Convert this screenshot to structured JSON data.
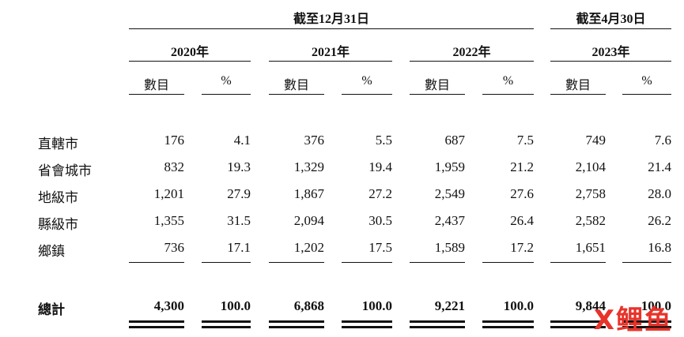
{
  "headers": {
    "group1": "截至12月31日",
    "group2": "截至4月30日",
    "years": [
      "2020年",
      "2021年",
      "2022年",
      "2023年"
    ],
    "count_label": "數目",
    "pct_label": "%"
  },
  "rows": [
    {
      "label": "直轄市",
      "values": [
        "176",
        "4.1",
        "376",
        "5.5",
        "687",
        "7.5",
        "749",
        "7.6"
      ]
    },
    {
      "label": "省會城市",
      "values": [
        "832",
        "19.3",
        "1,329",
        "19.4",
        "1,959",
        "21.2",
        "2,104",
        "21.4"
      ]
    },
    {
      "label": "地級市",
      "values": [
        "1,201",
        "27.9",
        "1,867",
        "27.2",
        "2,549",
        "27.6",
        "2,758",
        "28.0"
      ]
    },
    {
      "label": "縣級市",
      "values": [
        "1,355",
        "31.5",
        "2,094",
        "30.5",
        "2,437",
        "26.4",
        "2,582",
        "26.2"
      ]
    },
    {
      "label": "鄉鎮",
      "values": [
        "736",
        "17.1",
        "1,202",
        "17.5",
        "1,589",
        "17.2",
        "1,651",
        "16.8"
      ]
    }
  ],
  "total": {
    "label": "總計",
    "values": [
      "4,300",
      "100.0",
      "6,868",
      "100.0",
      "9,221",
      "100.0",
      "9,844",
      "100.0"
    ]
  },
  "watermark": {
    "part1": "X",
    "part2": "鲤",
    "part3": "鱼"
  }
}
